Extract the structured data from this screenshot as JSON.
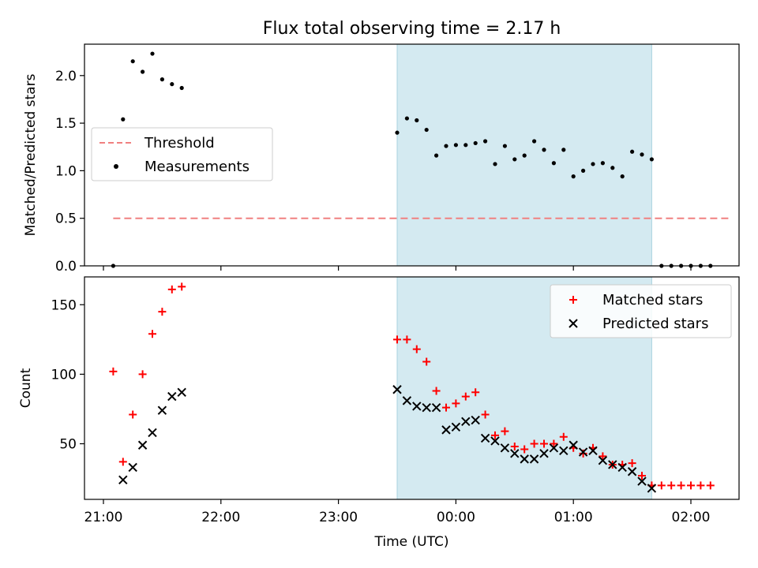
{
  "chart_data": [
    {
      "type": "scatter",
      "title": "Flux total observing time = 2.17 h",
      "ylabel": "Matched/Predicted stars",
      "xlabel": "",
      "ylim": [
        0,
        2.33
      ],
      "yticks": [
        "0.0",
        "0.5",
        "1.0",
        "1.5",
        "2.0"
      ],
      "highlight_span": [
        "23:30",
        "01:40"
      ],
      "highlight_color": "#d4eaf1",
      "legend_position": "center-left",
      "series": [
        {
          "name": "Threshold",
          "style": "dashed-line",
          "color": "#f08080",
          "x": [
            "21:05",
            "02:20"
          ],
          "y": [
            0.5,
            0.5
          ]
        },
        {
          "name": "Measurements",
          "style": "dot",
          "color": "#000000",
          "x": [
            "21:05",
            "21:10",
            "21:15",
            "21:20",
            "21:25",
            "21:30",
            "21:35",
            "21:40",
            "23:30",
            "23:35",
            "23:40",
            "23:45",
            "23:50",
            "23:55",
            "00:00",
            "00:05",
            "00:10",
            "00:15",
            "00:20",
            "00:25",
            "00:30",
            "00:35",
            "00:40",
            "00:45",
            "00:50",
            "00:55",
            "01:00",
            "01:05",
            "01:10",
            "01:15",
            "01:20",
            "01:25",
            "01:30",
            "01:35",
            "01:40",
            "01:45",
            "01:50",
            "01:55",
            "02:00",
            "02:05",
            "02:10"
          ],
          "y": [
            0.0,
            1.54,
            2.15,
            2.04,
            2.23,
            1.96,
            1.91,
            1.87,
            1.4,
            1.55,
            1.53,
            1.43,
            1.16,
            1.26,
            1.27,
            1.27,
            1.29,
            1.31,
            1.07,
            1.26,
            1.12,
            1.16,
            1.31,
            1.22,
            1.08,
            1.22,
            0.94,
            1.0,
            1.07,
            1.08,
            1.03,
            0.94,
            1.2,
            1.17,
            1.12,
            0.0,
            0.0,
            0.0,
            0.0,
            0.0,
            0.0
          ]
        }
      ]
    },
    {
      "type": "scatter",
      "title": "",
      "ylabel": "Count",
      "xlabel": "Time (UTC)",
      "ylim": [
        10,
        170
      ],
      "yticks": [
        "50",
        "100",
        "150"
      ],
      "xticks": [
        "21:00",
        "22:00",
        "23:00",
        "00:00",
        "01:00",
        "02:00"
      ],
      "highlight_span": [
        "23:30",
        "01:40"
      ],
      "highlight_color": "#d4eaf1",
      "legend_position": "top-right",
      "series": [
        {
          "name": "Matched stars",
          "style": "plus",
          "color": "#ff0000",
          "x": [
            "21:05",
            "21:10",
            "21:15",
            "21:20",
            "21:25",
            "21:30",
            "21:35",
            "21:40",
            "23:30",
            "23:35",
            "23:40",
            "23:45",
            "23:50",
            "23:55",
            "00:00",
            "00:05",
            "00:10",
            "00:15",
            "00:20",
            "00:25",
            "00:30",
            "00:35",
            "00:40",
            "00:45",
            "00:50",
            "00:55",
            "01:00",
            "01:05",
            "01:10",
            "01:15",
            "01:20",
            "01:25",
            "01:30",
            "01:35",
            "01:40",
            "01:45",
            "01:50",
            "01:55",
            "02:00",
            "02:05",
            "02:10"
          ],
          "y": [
            102,
            37,
            71,
            100,
            129,
            145,
            161,
            163,
            125,
            125,
            118,
            109,
            88,
            76,
            79,
            84,
            87,
            71,
            56,
            59,
            48,
            46,
            50,
            50,
            50,
            55,
            47,
            43,
            47,
            41,
            35,
            35,
            36,
            27,
            20,
            20,
            20,
            20,
            20,
            20,
            20
          ]
        },
        {
          "name": "Predicted stars",
          "style": "x",
          "color": "#000000",
          "x": [
            "21:10",
            "21:15",
            "21:20",
            "21:25",
            "21:30",
            "21:35",
            "21:40",
            "23:30",
            "23:35",
            "23:40",
            "23:45",
            "23:50",
            "23:55",
            "00:00",
            "00:05",
            "00:10",
            "00:15",
            "00:20",
            "00:25",
            "00:30",
            "00:35",
            "00:40",
            "00:45",
            "00:50",
            "00:55",
            "01:00",
            "01:05",
            "01:10",
            "01:15",
            "01:20",
            "01:25",
            "01:30",
            "01:35",
            "01:40"
          ],
          "y": [
            24,
            33,
            49,
            58,
            74,
            84,
            87,
            89,
            81,
            77,
            76,
            76,
            60,
            62,
            66,
            67,
            54,
            52,
            47,
            43,
            39,
            39,
            43,
            47,
            45,
            49,
            44,
            45,
            38,
            35,
            33,
            30,
            23,
            18
          ]
        }
      ]
    }
  ]
}
